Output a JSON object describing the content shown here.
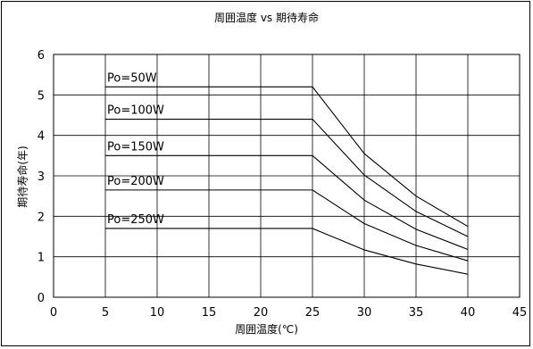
{
  "chart_data": {
    "type": "line",
    "title": "周囲温度 vs 期待寿命",
    "xlabel": "周囲温度(℃)",
    "ylabel": "期待寿命(年)",
    "xlim": [
      0,
      45
    ],
    "ylim": [
      0,
      6
    ],
    "xticks": [
      0,
      5,
      10,
      15,
      20,
      25,
      30,
      35,
      40,
      45
    ],
    "yticks": [
      0,
      1,
      2,
      3,
      4,
      5,
      6
    ],
    "grid": true,
    "legend": "none",
    "line_color": "#000000",
    "series": [
      {
        "name": "Po=50W",
        "x": [
          5,
          25,
          30,
          35,
          40
        ],
        "y": [
          5.2,
          5.2,
          3.55,
          2.5,
          1.75
        ]
      },
      {
        "name": "Po=100W",
        "x": [
          5,
          25,
          30,
          35,
          40
        ],
        "y": [
          4.4,
          4.4,
          3.02,
          2.12,
          1.5
        ]
      },
      {
        "name": "Po=150W",
        "x": [
          5,
          25,
          30,
          35,
          40
        ],
        "y": [
          3.5,
          3.5,
          2.4,
          1.68,
          1.18
        ]
      },
      {
        "name": "Po=200W",
        "x": [
          5,
          25,
          30,
          35,
          40
        ],
        "y": [
          2.65,
          2.65,
          1.82,
          1.28,
          0.9
        ]
      },
      {
        "name": "Po=250W",
        "x": [
          5,
          25,
          30,
          35,
          40
        ],
        "y": [
          1.7,
          1.7,
          1.17,
          0.82,
          0.57
        ]
      }
    ]
  }
}
